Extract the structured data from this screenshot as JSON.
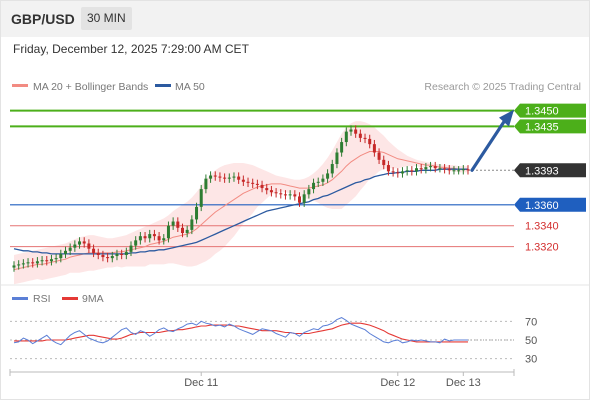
{
  "header": {
    "pair": "GBP/USD",
    "timeframe": "30 MIN",
    "datetime": "Friday, December 12, 2025 7:29:00 AM CET"
  },
  "legend": {
    "ma20_label": "MA 20 + Bollinger Bands",
    "ma50_label": "MA 50",
    "credit": "Research © 2025 Trading Central"
  },
  "rsi_legend": {
    "rsi_label": "RSI",
    "ma9_label": "9MA"
  },
  "colors": {
    "bull": "#2e7d32",
    "bear": "#c62828",
    "ma20": "#f28b82",
    "ma50": "#2c5aa0",
    "bb_fill": "#fde2e2",
    "resistance": "#4caf1a",
    "support_blue": "#1f5fbf",
    "support_red": "#e57373",
    "price_tag": "#333333",
    "rsi": "#5b7fd6",
    "rsi_ma": "#e53935",
    "arrow": "#2c5aa0"
  },
  "chart_data": [
    {
      "type": "candlestick",
      "title": "GBP/USD 30 MIN",
      "ylim": [
        1.329,
        1.3465
      ],
      "x_ticks": [
        {
          "index": 40,
          "label": "Dec 11"
        },
        {
          "index": 82,
          "label": "Dec 12"
        },
        {
          "index": 96,
          "label": "Dec 13"
        }
      ],
      "levels": [
        {
          "value": 1.345,
          "label": "1.3450",
          "style": "resistance"
        },
        {
          "value": 1.3435,
          "label": "1.3435",
          "style": "resistance"
        },
        {
          "value": 1.3393,
          "label": "1.3393",
          "style": "price"
        },
        {
          "value": 1.336,
          "label": "1.3360",
          "style": "support_blue"
        },
        {
          "value": 1.334,
          "label": "1.3340",
          "style": "support_red"
        },
        {
          "value": 1.332,
          "label": "1.3320",
          "style": "support_red"
        }
      ],
      "close": [
        1.3302,
        1.3303,
        1.3304,
        1.3305,
        1.3304,
        1.3306,
        1.3307,
        1.3306,
        1.3308,
        1.3309,
        1.3313,
        1.3316,
        1.3319,
        1.3322,
        1.3325,
        1.3323,
        1.3318,
        1.3314,
        1.3312,
        1.331,
        1.3309,
        1.3311,
        1.3313,
        1.3312,
        1.3315,
        1.3321,
        1.3326,
        1.333,
        1.3328,
        1.3332,
        1.333,
        1.3326,
        1.3328,
        1.334,
        1.3344,
        1.3338,
        1.3333,
        1.3336,
        1.3346,
        1.3358,
        1.3375,
        1.3385,
        1.3388,
        1.3387,
        1.3386,
        1.3385,
        1.3386,
        1.3387,
        1.3384,
        1.3382,
        1.3381,
        1.338,
        1.3379,
        1.3376,
        1.3374,
        1.3372,
        1.3371,
        1.337,
        1.3369,
        1.337,
        1.3368,
        1.3362,
        1.337,
        1.3375,
        1.3381,
        1.3382,
        1.3385,
        1.339,
        1.3399,
        1.341,
        1.342,
        1.343,
        1.3432,
        1.3428,
        1.3424,
        1.3423,
        1.3418,
        1.341,
        1.3403,
        1.3398,
        1.3392,
        1.3391,
        1.339,
        1.3392,
        1.3393,
        1.3392,
        1.3395,
        1.3394,
        1.3396,
        1.3397,
        1.3395,
        1.3395,
        1.3394,
        1.3393,
        1.3393,
        1.3393,
        1.3394,
        1.3393
      ],
      "series": [
        {
          "name": "MA 20",
          "values": [
            1.3298,
            1.3299,
            1.33,
            1.3301,
            1.3302,
            1.3303,
            1.3303,
            1.3304,
            1.3305,
            1.3306,
            1.3307,
            1.3308,
            1.331,
            1.3311,
            1.3312,
            1.3313,
            1.3314,
            1.3314,
            1.3314,
            1.3314,
            1.3314,
            1.3314,
            1.3315,
            1.3315,
            1.3316,
            1.3317,
            1.3318,
            1.3319,
            1.332,
            1.3322,
            1.3323,
            1.3324,
            1.3325,
            1.3327,
            1.3329,
            1.333,
            1.3331,
            1.3332,
            1.3334,
            1.3337,
            1.3341,
            1.3345,
            1.3349,
            1.3353,
            1.3356,
            1.3359,
            1.3362,
            1.3365,
            1.3368,
            1.3371,
            1.3373,
            1.3375,
            1.3377,
            1.3378,
            1.3379,
            1.338,
            1.338,
            1.338,
            1.3379,
            1.3378,
            1.3377,
            1.3376,
            1.3376,
            1.3376,
            1.3377,
            1.3378,
            1.3379,
            1.3381,
            1.3384,
            1.3388,
            1.3392,
            1.3397,
            1.3401,
            1.3404,
            1.3407,
            1.3409,
            1.3411,
            1.3411,
            1.3411,
            1.341,
            1.3408,
            1.3406,
            1.3404,
            1.3403,
            1.3402,
            1.3401,
            1.34,
            1.3399,
            1.3398,
            1.3398,
            1.3397,
            1.3396,
            1.3396,
            1.3395,
            1.3395,
            1.3394,
            1.3394,
            1.3394
          ]
        },
        {
          "name": "MA 50",
          "values": [
            1.3318,
            1.3317,
            1.3316,
            1.3316,
            1.3315,
            1.3315,
            1.3314,
            1.3314,
            1.3313,
            1.3313,
            1.3313,
            1.3313,
            1.3313,
            1.3313,
            1.3313,
            1.3313,
            1.3313,
            1.3313,
            1.3313,
            1.3313,
            1.3313,
            1.3313,
            1.3313,
            1.3313,
            1.3313,
            1.3314,
            1.3314,
            1.3315,
            1.3315,
            1.3316,
            1.3316,
            1.3317,
            1.3317,
            1.3318,
            1.3319,
            1.332,
            1.3321,
            1.3322,
            1.3323,
            1.3324,
            1.3326,
            1.3328,
            1.333,
            1.3332,
            1.3334,
            1.3336,
            1.3338,
            1.334,
            1.3342,
            1.3344,
            1.3346,
            1.3348,
            1.335,
            1.3352,
            1.3354,
            1.3355,
            1.3356,
            1.3357,
            1.3358,
            1.3359,
            1.336,
            1.3361,
            1.3362,
            1.3363,
            1.3365,
            1.3366,
            1.3368,
            1.3369,
            1.3371,
            1.3373,
            1.3375,
            1.3377,
            1.3379,
            1.3381,
            1.3382,
            1.3384,
            1.3385,
            1.3387,
            1.3388,
            1.3389,
            1.339,
            1.339,
            1.3391,
            1.3391,
            1.3392,
            1.3392,
            1.3392,
            1.3393,
            1.3393,
            1.3393,
            1.3393,
            1.3394,
            1.3394,
            1.3394,
            1.3394,
            1.3394,
            1.3394,
            1.3394
          ]
        },
        {
          "name": "Bollinger Bands",
          "upper": [
            1.3312,
            1.3313,
            1.3314,
            1.3315,
            1.3316,
            1.3317,
            1.3318,
            1.3319,
            1.332,
            1.3321,
            1.3322,
            1.3323,
            1.3325,
            1.3327,
            1.3329,
            1.333,
            1.3331,
            1.3331,
            1.333,
            1.3329,
            1.3328,
            1.3328,
            1.3329,
            1.333,
            1.3331,
            1.3333,
            1.3335,
            1.3337,
            1.3339,
            1.3341,
            1.3343,
            1.3345,
            1.3347,
            1.335,
            1.3354,
            1.3357,
            1.336,
            1.3363,
            1.3367,
            1.3372,
            1.3378,
            1.3384,
            1.3389,
            1.3393,
            1.3396,
            1.3398,
            1.3399,
            1.34,
            1.34,
            1.34,
            1.3399,
            1.3398,
            1.3396,
            1.3394,
            1.3392,
            1.339,
            1.3388,
            1.3387,
            1.3386,
            1.3385,
            1.3384,
            1.3384,
            1.3385,
            1.3387,
            1.339,
            1.3394,
            1.3399,
            1.3405,
            1.3412,
            1.342,
            1.3428,
            1.3434,
            1.3438,
            1.344,
            1.344,
            1.3439,
            1.3437,
            1.3434,
            1.343,
            1.3426,
            1.3421,
            1.3417,
            1.3413,
            1.341,
            1.3407,
            1.3405,
            1.3403,
            1.3402,
            1.3401,
            1.34,
            1.3399,
            1.3399,
            1.3398,
            1.3398,
            1.3398,
            1.3397,
            1.3397,
            1.3397
          ],
          "lower": [
            1.3284,
            1.3285,
            1.3286,
            1.3287,
            1.3288,
            1.3289,
            1.3288,
            1.3289,
            1.329,
            1.3291,
            1.3292,
            1.3293,
            1.3295,
            1.3295,
            1.3295,
            1.3296,
            1.3297,
            1.3297,
            1.3298,
            1.3299,
            1.33,
            1.33,
            1.3301,
            1.33,
            1.3301,
            1.3301,
            1.3301,
            1.3301,
            1.3301,
            1.3303,
            1.3303,
            1.3303,
            1.3303,
            1.3304,
            1.3304,
            1.3303,
            1.3302,
            1.3301,
            1.3301,
            1.3302,
            1.3304,
            1.3306,
            1.3309,
            1.3313,
            1.3316,
            1.332,
            1.3325,
            1.333,
            1.3336,
            1.3342,
            1.3347,
            1.3352,
            1.3358,
            1.3362,
            1.3366,
            1.337,
            1.3372,
            1.3373,
            1.3372,
            1.3371,
            1.337,
            1.3368,
            1.3367,
            1.3365,
            1.3364,
            1.3362,
            1.3359,
            1.3357,
            1.3356,
            1.3356,
            1.3356,
            1.336,
            1.3364,
            1.3368,
            1.3374,
            1.3379,
            1.3385,
            1.3388,
            1.3392,
            1.3394,
            1.3395,
            1.3395,
            1.3395,
            1.3396,
            1.3397,
            1.3397,
            1.3397,
            1.3396,
            1.3395,
            1.3396,
            1.3395,
            1.3393,
            1.3394,
            1.3392,
            1.3392,
            1.3391,
            1.3391,
            1.3391
          ]
        }
      ]
    },
    {
      "type": "line",
      "title": "RSI",
      "ylim": [
        20,
        80
      ],
      "y_ticks": [
        70,
        50,
        30
      ],
      "series": [
        {
          "name": "RSI",
          "values": [
            47,
            48,
            52,
            50,
            46,
            49,
            52,
            55,
            50,
            47,
            45,
            50,
            55,
            58,
            60,
            56,
            52,
            50,
            48,
            47,
            49,
            53,
            57,
            61,
            63,
            58,
            56,
            60,
            58,
            54,
            57,
            61,
            63,
            60,
            59,
            62,
            64,
            67,
            68,
            66,
            70,
            68,
            67,
            65,
            66,
            64,
            67,
            65,
            62,
            60,
            58,
            56,
            59,
            62,
            61,
            60,
            57,
            55,
            53,
            58,
            57,
            54,
            58,
            60,
            62,
            61,
            65,
            66,
            68,
            72,
            74,
            71,
            67,
            65,
            63,
            61,
            57,
            54,
            51,
            48,
            47,
            49,
            50,
            47,
            48,
            50,
            49,
            50,
            49,
            48,
            48,
            47,
            51,
            49,
            50,
            50,
            50,
            50
          ]
        },
        {
          "name": "9MA",
          "values": [
            49,
            49,
            49,
            49,
            49,
            49,
            49,
            50,
            50,
            50,
            50,
            50,
            51,
            52,
            53,
            54,
            55,
            55,
            54,
            53,
            52,
            51,
            51,
            52,
            54,
            56,
            57,
            58,
            58,
            58,
            58,
            58,
            59,
            60,
            60,
            61,
            61,
            62,
            63,
            64,
            65,
            65,
            66,
            66,
            66,
            66,
            66,
            65,
            65,
            64,
            63,
            62,
            61,
            60,
            60,
            60,
            60,
            59,
            58,
            58,
            57,
            57,
            57,
            57,
            58,
            59,
            60,
            61,
            62,
            64,
            66,
            67,
            68,
            68,
            68,
            67,
            66,
            64,
            62,
            60,
            57,
            55,
            53,
            51,
            50,
            49,
            48,
            48,
            48,
            48,
            48,
            48,
            48,
            48,
            48,
            48,
            48,
            48
          ]
        }
      ]
    }
  ]
}
